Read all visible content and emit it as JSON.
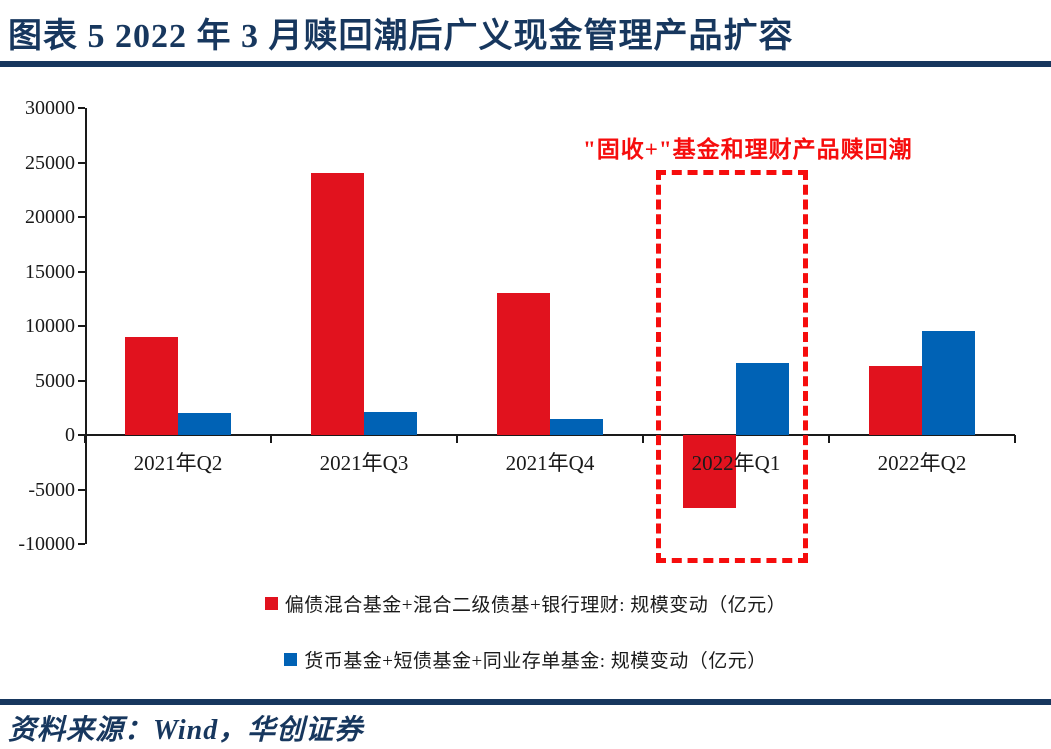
{
  "page": {
    "title": "图表 5 2022 年 3 月赎回潮后广义现金管理产品扩容",
    "footer": "资料来源：Wind，华创证券"
  },
  "colors": {
    "navy": "#17375e",
    "annotation_red": "#f60d0d",
    "axis": "#1a1a1a",
    "series_red": "#e1121e",
    "series_blue": "#0062b5"
  },
  "chart_data": {
    "type": "bar",
    "categories": [
      "2021年Q2",
      "2021年Q3",
      "2021年Q4",
      "2022年Q1",
      "2022年Q2"
    ],
    "series": [
      {
        "name": "偏债混合基金+混合二级债基+银行理财: 规模变动（亿元）",
        "color": "#e1121e",
        "values": [
          9000,
          24000,
          13000,
          -6700,
          6300
        ]
      },
      {
        "name": "货币基金+短债基金+同业存单基金: 规模变动（亿元）",
        "color": "#0062b5",
        "values": [
          2000,
          2100,
          1500,
          6600,
          9500
        ]
      }
    ],
    "title": "2022 年 3 月赎回潮后广义现金管理产品扩容",
    "xlabel": "",
    "ylabel": "",
    "ylim": [
      -10000,
      30000
    ],
    "yticks": [
      30000,
      25000,
      20000,
      15000,
      10000,
      5000,
      0,
      -5000,
      -10000
    ],
    "grid": false,
    "legend_position": "bottom",
    "annotation": {
      "text": "\"固收+\"基金和理财产品赎回潮",
      "highlight_category": "2022年Q1",
      "style": "red dashed box around 2022年Q1 bars"
    }
  }
}
